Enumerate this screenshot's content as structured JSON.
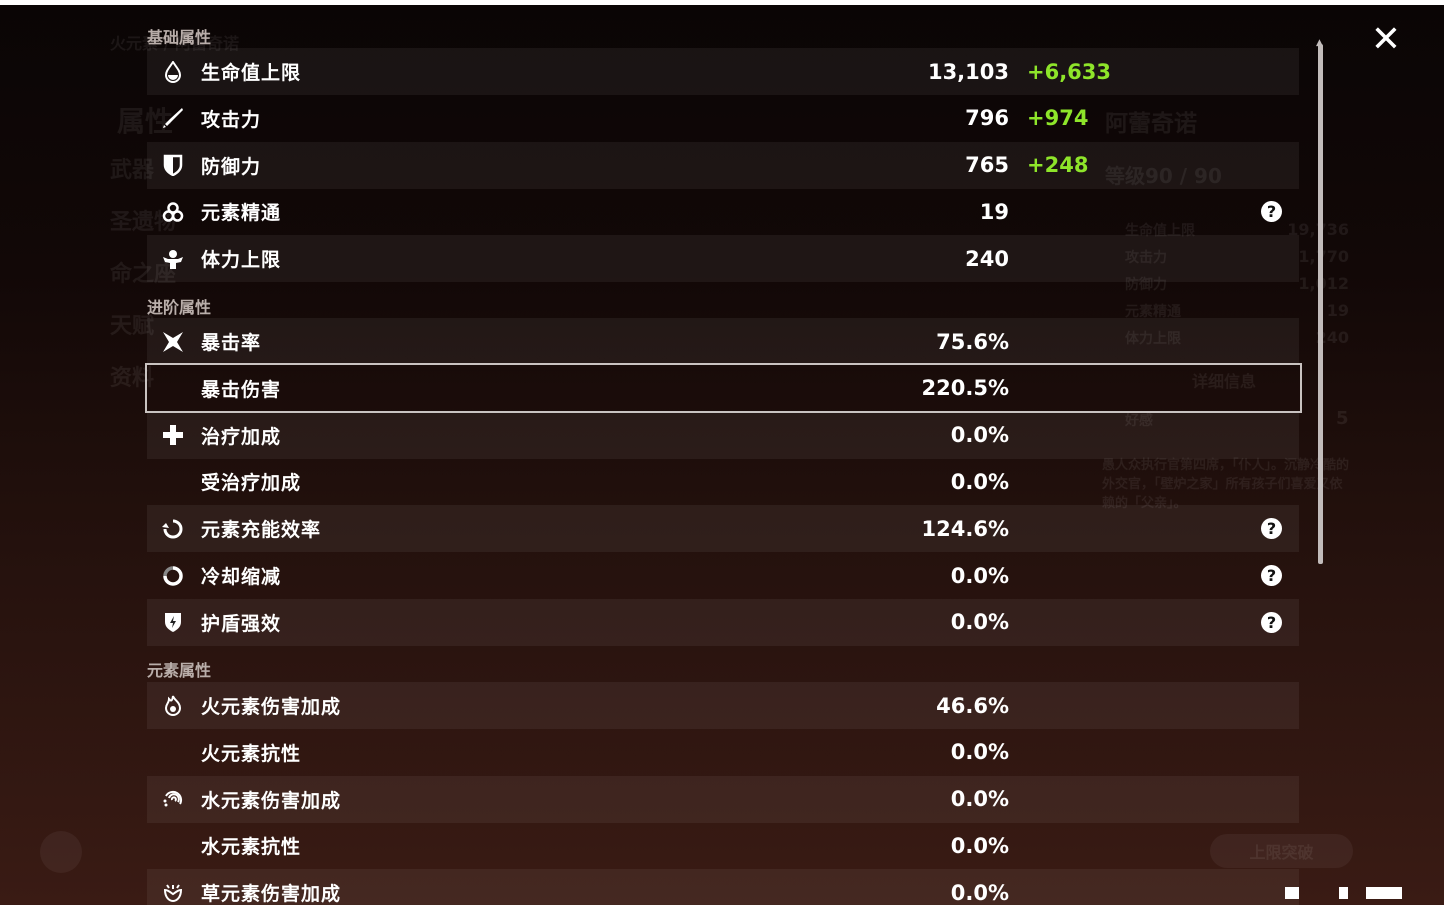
{
  "background": {
    "element_title": "火元素 / 阿蕾奇诺",
    "menu": [
      "属性",
      "武器",
      "圣遗物",
      "命之座",
      "天赋",
      "资料"
    ],
    "char_name": "阿蕾奇诺",
    "level": "等级90 / 90",
    "summary": [
      [
        "生命值上限",
        "19,736"
      ],
      [
        "攻击力",
        "1,770"
      ],
      [
        "防御力",
        "1,012"
      ],
      [
        "元素精通",
        "19"
      ],
      [
        "体力上限",
        "240"
      ]
    ],
    "details_button": "详细信息",
    "friendship_label": "好感",
    "friendship_value": "5",
    "description": "愚人众执行官第四席，「仆人」。沉静冷酷的外交官，「壁炉之家」所有孩子们喜爱又依赖的「父亲」。",
    "ascend_button": "上限突破"
  },
  "sections": [
    {
      "title": "基础属性",
      "rows": [
        {
          "icon": "hp-drop-icon",
          "name": "生命值上限",
          "value": "13,103",
          "bonus": "+6,633"
        },
        {
          "icon": "sword-icon",
          "name": "攻击力",
          "value": "796",
          "bonus": "+974"
        },
        {
          "icon": "shield-icon",
          "name": "防御力",
          "value": "765",
          "bonus": "+248"
        },
        {
          "icon": "elemental-mastery-icon",
          "name": "元素精通",
          "value": "19",
          "help": true
        },
        {
          "icon": "stamina-icon",
          "name": "体力上限",
          "value": "240"
        }
      ]
    },
    {
      "title": "进阶属性",
      "rows": [
        {
          "icon": "crit-rate-icon",
          "name": "暴击率",
          "value": "75.6%"
        },
        {
          "icon": "",
          "name": "暴击伤害",
          "value": "220.5%",
          "selected": true
        },
        {
          "icon": "healing-cross-icon",
          "name": "治疗加成",
          "value": "0.0%"
        },
        {
          "icon": "",
          "name": "受治疗加成",
          "value": "0.0%"
        },
        {
          "icon": "energy-recharge-icon",
          "name": "元素充能效率",
          "value": "124.6%",
          "help": true
        },
        {
          "icon": "cooldown-icon",
          "name": "冷却缩减",
          "value": "0.0%",
          "help": true
        },
        {
          "icon": "shield-strength-icon",
          "name": "护盾强效",
          "value": "0.0%",
          "help": true
        }
      ]
    },
    {
      "title": "元素属性",
      "rows": [
        {
          "icon": "pyro-icon",
          "name": "火元素伤害加成",
          "value": "46.6%"
        },
        {
          "icon": "",
          "name": "火元素抗性",
          "value": "0.0%"
        },
        {
          "icon": "hydro-icon",
          "name": "水元素伤害加成",
          "value": "0.0%"
        },
        {
          "icon": "",
          "name": "水元素抗性",
          "value": "0.0%"
        },
        {
          "icon": "dendro-icon",
          "name": "草元素伤害加成",
          "value": "0.0%"
        }
      ]
    }
  ],
  "help_glyph": "?",
  "close_glyph": "✕",
  "colors": {
    "bonus": "#8ee52a",
    "selected_border": "#c9c3c1"
  }
}
